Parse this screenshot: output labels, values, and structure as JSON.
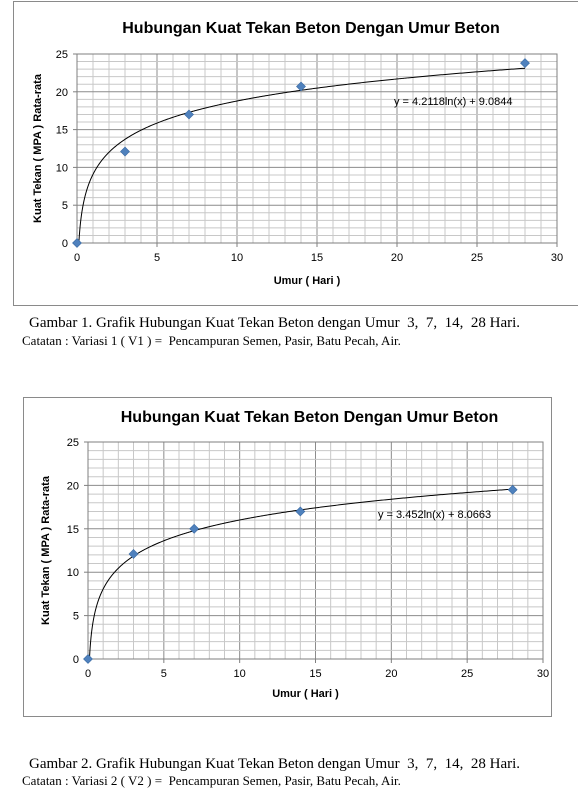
{
  "chart_data": [
    {
      "type": "scatter",
      "title": "Hubungan Kuat Tekan Beton Dengan Umur Beton",
      "xlabel": "Umur ( Hari )",
      "ylabel": "Kuat Tekan ( MPA ) Rata-rata",
      "xlim": [
        0,
        30
      ],
      "ylim": [
        0,
        25
      ],
      "xticks": [
        0,
        5,
        10,
        15,
        20,
        25,
        30
      ],
      "yticks": [
        0,
        5,
        10,
        15,
        20,
        25
      ],
      "grid": true,
      "series": [
        {
          "x": [
            0,
            3,
            7,
            14,
            28
          ],
          "y": [
            0,
            12.1,
            17.0,
            20.7,
            23.8
          ],
          "color": "#4f81bd"
        }
      ],
      "trendline": {
        "type": "logarithmic",
        "a": 4.2118,
        "b": 9.0844,
        "equation": "y = 4.2118ln(x) + 9.0844"
      }
    },
    {
      "type": "scatter",
      "title": "Hubungan Kuat Tekan Beton Dengan Umur Beton",
      "xlabel": "Umur ( Hari )",
      "ylabel": "Kuat Tekan ( MPA ) Rata-rata",
      "xlim": [
        0,
        30
      ],
      "ylim": [
        0,
        25
      ],
      "xticks": [
        0,
        5,
        10,
        15,
        20,
        25,
        30
      ],
      "yticks": [
        0,
        5,
        10,
        15,
        20,
        25
      ],
      "grid": true,
      "series": [
        {
          "x": [
            0,
            3,
            7,
            14,
            28
          ],
          "y": [
            0,
            12.1,
            15.0,
            17.0,
            19.5
          ],
          "color": "#4f81bd"
        }
      ],
      "trendline": {
        "type": "logarithmic",
        "a": 3.452,
        "b": 8.0663,
        "equation": "y = 3.452ln(x) + 8.0663"
      }
    }
  ],
  "captions": [
    {
      "main": "Gambar 1. Grafik Hubungan Kuat Tekan Beton dengan Umur  3,  7,  14,  28 Hari.",
      "note": "Catatan : Variasi 1 ( V1 ) =  Pencampuran Semen, Pasir, Batu Pecah, Air."
    },
    {
      "main": "Gambar 2. Grafik Hubungan Kuat Tekan Beton dengan Umur  3,  7,  14,  28 Hari.",
      "note": "Catatan : Variasi 2 ( V2 ) =  Pencampuran Semen, Pasir, Batu Pecah, Air."
    }
  ]
}
